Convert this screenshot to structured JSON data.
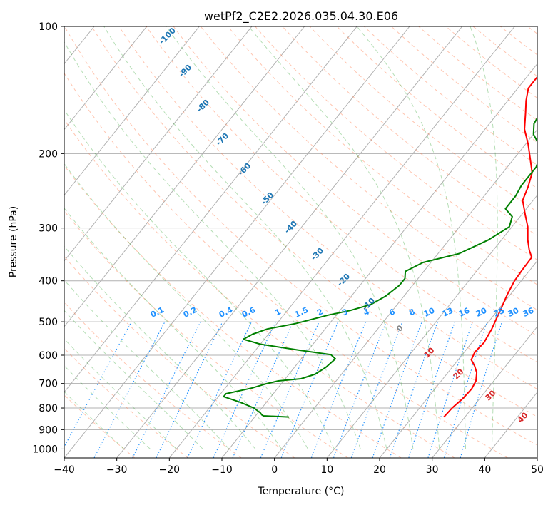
{
  "chart_data": {
    "type": "line",
    "title": "wetPf2_C2E2.2026.035.04.30.E06",
    "xlabel": "Temperature (°C)",
    "ylabel": "Pressure (hPa)",
    "xlim": [
      -40,
      50
    ],
    "ylim": [
      1050,
      100
    ],
    "y_scale": "log",
    "grid": true,
    "x_ticks": [
      -40,
      -30,
      -20,
      -10,
      0,
      10,
      20,
      30,
      40,
      50
    ],
    "y_ticks": [
      1000,
      900,
      800,
      700,
      600,
      500,
      400,
      300,
      200,
      100
    ],
    "series": [
      {
        "role": "temperature",
        "color": "#ff0000",
        "points": [
          [
            26.0,
            840
          ],
          [
            26.2,
            800
          ],
          [
            26.8,
            760
          ],
          [
            27.0,
            720
          ],
          [
            26.6,
            690
          ],
          [
            25.5,
            660
          ],
          [
            24.0,
            635
          ],
          [
            22.5,
            615
          ],
          [
            22.0,
            590
          ],
          [
            22.3,
            560
          ],
          [
            21.7,
            520
          ],
          [
            20.5,
            470
          ],
          [
            19.4,
            430
          ],
          [
            18.7,
            400
          ],
          [
            18.5,
            375
          ],
          [
            18.4,
            352
          ],
          [
            16.8,
            338
          ],
          [
            15.0,
            320
          ],
          [
            13.0,
            298
          ],
          [
            10.8,
            280
          ],
          [
            8.0,
            258
          ],
          [
            7.0,
            240
          ],
          [
            5.6,
            222
          ],
          [
            3.0,
            205
          ],
          [
            0.5,
            190
          ],
          [
            -2.5,
            175
          ],
          [
            -4.8,
            160
          ],
          [
            -6.5,
            150
          ],
          [
            -8.0,
            140
          ],
          [
            -8.0,
            130
          ],
          [
            -8.5,
            120
          ],
          [
            -8.7,
            110
          ],
          [
            -8.8,
            100
          ]
        ]
      },
      {
        "role": "dewpoint",
        "color": "#008000",
        "points": [
          [
            -3.5,
            840
          ],
          [
            -8.5,
            835
          ],
          [
            -9.0,
            830
          ],
          [
            -9.5,
            822
          ],
          [
            -11.5,
            800
          ],
          [
            -15.0,
            775
          ],
          [
            -19.0,
            752
          ],
          [
            -19.0,
            740
          ],
          [
            -15.0,
            718
          ],
          [
            -13.0,
            702
          ],
          [
            -11.0,
            690
          ],
          [
            -7.0,
            682
          ],
          [
            -5.0,
            665
          ],
          [
            -4.0,
            640
          ],
          [
            -3.5,
            612
          ],
          [
            -5.0,
            598
          ],
          [
            -12.0,
            583
          ],
          [
            -20.0,
            565
          ],
          [
            -24.0,
            550
          ],
          [
            -23.0,
            535
          ],
          [
            -21.0,
            520
          ],
          [
            -16.5,
            505
          ],
          [
            -11.5,
            482
          ],
          [
            -8.0,
            470
          ],
          [
            -5.0,
            455
          ],
          [
            -3.5,
            435
          ],
          [
            -2.5,
            410
          ],
          [
            -2.5,
            395
          ],
          [
            -3.5,
            380
          ],
          [
            -1.5,
            362
          ],
          [
            4.0,
            345
          ],
          [
            7.5,
            320
          ],
          [
            9.5,
            298
          ],
          [
            8.5,
            282
          ],
          [
            6.0,
            270
          ],
          [
            6.0,
            252
          ],
          [
            5.5,
            238
          ],
          [
            5.5,
            215
          ],
          [
            4.5,
            202
          ],
          [
            2.5,
            190
          ],
          [
            0.0,
            180
          ],
          [
            -1.5,
            170
          ],
          [
            -2.0,
            160
          ],
          [
            -3.0,
            150
          ],
          [
            -4.5,
            140
          ],
          [
            -5.5,
            132
          ],
          [
            -5.5,
            125
          ],
          [
            -6.5,
            118
          ],
          [
            -7.0,
            110
          ],
          [
            -6.0,
            102
          ],
          [
            -5.5,
            100
          ]
        ]
      }
    ],
    "dry_adiabat_labels": [
      "-100",
      "-90",
      "-80",
      "-70",
      "-60",
      "-50",
      "-40",
      "-30",
      "-20",
      "-10",
      "0",
      "10",
      "20",
      "30",
      "40"
    ],
    "mixing_ratio_labels": [
      "0.1",
      "0.2",
      "0.4",
      "0.6",
      "1",
      "1.5",
      "2",
      "3",
      "4",
      "6",
      "8",
      "10",
      "13",
      "16",
      "20",
      "25",
      "30",
      "36"
    ]
  },
  "colors": {
    "temperature": "#ff0000",
    "dewpoint": "#008000",
    "dry_adiabat_neg": "#1f77b4",
    "dry_adiabat_pos": "#d62728",
    "dry_adiabat_zero": "#888888",
    "mixing_ratio": "#1e90ff"
  }
}
